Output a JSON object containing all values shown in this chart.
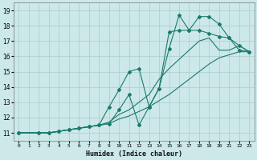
{
  "xlabel": "Humidex (Indice chaleur)",
  "bg_color": "#cce8e8",
  "line_color": "#1a7a6e",
  "grid_color": "#aacccc",
  "xlim": [
    -0.5,
    23.5
  ],
  "ylim": [
    10.5,
    19.5
  ],
  "xticks": [
    0,
    1,
    2,
    3,
    4,
    5,
    6,
    7,
    8,
    9,
    10,
    11,
    12,
    13,
    14,
    15,
    16,
    17,
    18,
    19,
    20,
    21,
    22,
    23
  ],
  "yticks": [
    11,
    12,
    13,
    14,
    15,
    16,
    17,
    18,
    19
  ],
  "series": [
    {
      "x": [
        0,
        1,
        2,
        3,
        4,
        5,
        6,
        7,
        8,
        9,
        10,
        11,
        12,
        13,
        14,
        15,
        16,
        17,
        18,
        19,
        20,
        21,
        22,
        23
      ],
      "y": [
        11,
        11,
        11,
        11,
        11.1,
        11.2,
        11.3,
        11.4,
        11.5,
        11.6,
        11.9,
        12.1,
        12.4,
        12.7,
        13.1,
        13.5,
        14.0,
        14.5,
        15.0,
        15.5,
        15.9,
        16.1,
        16.3,
        16.3
      ],
      "marker": false
    },
    {
      "x": [
        0,
        1,
        2,
        3,
        4,
        5,
        6,
        7,
        8,
        9,
        10,
        11,
        12,
        13,
        14,
        15,
        16,
        17,
        18,
        19,
        20,
        21,
        22,
        23
      ],
      "y": [
        11,
        11,
        11,
        11,
        11.1,
        11.2,
        11.3,
        11.4,
        11.5,
        11.7,
        12.2,
        12.5,
        13.0,
        13.5,
        14.5,
        15.2,
        15.8,
        16.4,
        17.0,
        17.2,
        16.4,
        16.4,
        16.7,
        16.3
      ],
      "marker": false
    },
    {
      "x": [
        0,
        2,
        3,
        4,
        5,
        6,
        7,
        8,
        9,
        10,
        11,
        12,
        13,
        14,
        15,
        16,
        17,
        18,
        19,
        20,
        21,
        22,
        23
      ],
      "y": [
        11,
        11,
        11,
        11.1,
        11.2,
        11.3,
        11.4,
        11.5,
        11.6,
        12.5,
        13.5,
        11.5,
        12.7,
        13.9,
        17.6,
        17.7,
        17.7,
        18.6,
        18.6,
        18.1,
        17.2,
        16.4,
        16.3
      ],
      "marker": true
    },
    {
      "x": [
        0,
        2,
        3,
        4,
        5,
        6,
        7,
        8,
        9,
        10,
        11,
        12,
        13,
        14,
        15,
        16,
        17,
        18,
        19,
        20,
        21,
        22,
        23
      ],
      "y": [
        11,
        11,
        11,
        11.1,
        11.2,
        11.3,
        11.4,
        11.5,
        12.7,
        13.8,
        15.0,
        15.2,
        12.7,
        13.9,
        16.5,
        18.7,
        17.7,
        17.7,
        17.5,
        17.3,
        17.2,
        16.7,
        16.3
      ],
      "marker": true
    }
  ]
}
